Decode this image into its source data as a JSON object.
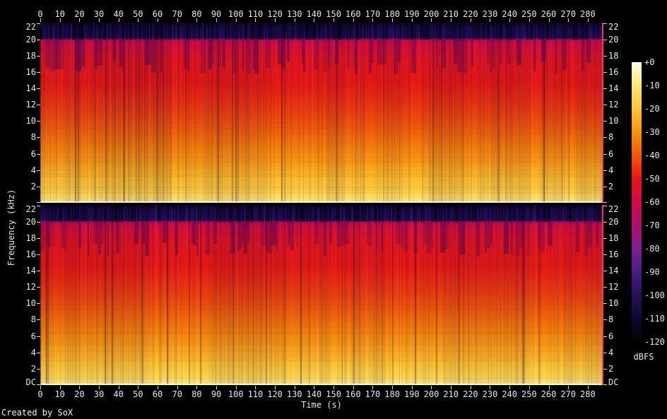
{
  "credit": "Created by SoX",
  "axes": {
    "time_label": "Time (s)",
    "freq_label": "Frequency (kHz)",
    "time_tick_labels": [
      "0",
      "10",
      "20",
      "30",
      "40",
      "50",
      "60",
      "70",
      "80",
      "90",
      "100",
      "110",
      "120",
      "130",
      "140",
      "150",
      "160",
      "170",
      "180",
      "190",
      "200",
      "210",
      "220",
      "230",
      "240",
      "250",
      "260",
      "270",
      "280"
    ],
    "freq_tick_labels": [
      "22",
      "20",
      "18",
      "16",
      "14",
      "12",
      "10",
      "8",
      "6",
      "4",
      "2"
    ],
    "dc_label": "DC"
  },
  "colorbar": {
    "title": "dBFS",
    "tick_labels": [
      "+0",
      "-10",
      "-20",
      "-30",
      "-40",
      "-50",
      "-60",
      "-70",
      "-80",
      "-90",
      "-100",
      "-110",
      "-120"
    ]
  },
  "chart_data": {
    "type": "heatmap",
    "subtype": "audio-spectrogram",
    "tool": "SoX",
    "title": "",
    "xlabel": "Time (s)",
    "ylabel": "Frequency (kHz)",
    "channels": 2,
    "x_range_s": [
      0,
      288
    ],
    "x_tick_step_s": 10,
    "y_range_khz_per_channel": [
      0,
      22.05
    ],
    "y_tick_step_khz": 2,
    "colorbar": {
      "label": "dBFS",
      "range_db": [
        0,
        -120
      ],
      "tick_step_db": 10
    },
    "palette_stops": [
      {
        "pos": 0.0,
        "db": 0,
        "color": "#fffdf0"
      },
      {
        "pos": 0.083,
        "db": -10,
        "color": "#ffe76e"
      },
      {
        "pos": 0.167,
        "db": -20,
        "color": "#fec63a"
      },
      {
        "pos": 0.25,
        "db": -30,
        "color": "#f9920f"
      },
      {
        "pos": 0.333,
        "db": -40,
        "color": "#f45808"
      },
      {
        "pos": 0.417,
        "db": -50,
        "color": "#ec1414"
      },
      {
        "pos": 0.5,
        "db": -60,
        "color": "#d20a4c"
      },
      {
        "pos": 0.583,
        "db": -70,
        "color": "#ac0f6e"
      },
      {
        "pos": 0.667,
        "db": -80,
        "color": "#7d2093"
      },
      {
        "pos": 0.75,
        "db": -90,
        "color": "#4c1a84"
      },
      {
        "pos": 0.833,
        "db": -100,
        "color": "#261158"
      },
      {
        "pos": 0.917,
        "db": -110,
        "color": "#0f0730"
      },
      {
        "pos": 1.0,
        "db": -120,
        "color": "#020104"
      }
    ],
    "frequency_energy_profile": [
      {
        "band_khz": [
          0,
          1
        ],
        "approx_dbfs": -15,
        "appearance": "bright yellow"
      },
      {
        "band_khz": [
          1,
          3
        ],
        "approx_dbfs": -22,
        "appearance": "yellow-orange"
      },
      {
        "band_khz": [
          3,
          5
        ],
        "approx_dbfs": -30,
        "appearance": "orange"
      },
      {
        "band_khz": [
          5,
          8
        ],
        "approx_dbfs": -38,
        "appearance": "orange-red"
      },
      {
        "band_khz": [
          8,
          12
        ],
        "approx_dbfs": -45,
        "appearance": "red"
      },
      {
        "band_khz": [
          12,
          17
        ],
        "approx_dbfs": -50,
        "appearance": "red"
      },
      {
        "band_khz": [
          17,
          20
        ],
        "approx_dbfs": -55,
        "appearance": "crimson with vertical gaps"
      },
      {
        "band_khz": [
          20,
          22.05
        ],
        "approx_dbfs": -100,
        "appearance": "dark indigo cutoff band with black vertical stripes"
      }
    ],
    "gradient_stops": [
      [
        0.0,
        "#0b0428"
      ],
      [
        0.03,
        "#1d0d50"
      ],
      [
        0.085,
        "#251163"
      ],
      [
        0.093,
        "#b80a52"
      ],
      [
        0.115,
        "#d50f3e"
      ],
      [
        0.2,
        "#e21522"
      ],
      [
        0.34,
        "#e61a15"
      ],
      [
        0.48,
        "#ec3b10"
      ],
      [
        0.6,
        "#f2600c"
      ],
      [
        0.7,
        "#f7820d"
      ],
      [
        0.8,
        "#fca51c"
      ],
      [
        0.88,
        "#fec232"
      ],
      [
        0.95,
        "#ffd74f"
      ],
      [
        0.985,
        "#ffe47a"
      ],
      [
        1.0,
        "#fff3b0"
      ]
    ]
  }
}
